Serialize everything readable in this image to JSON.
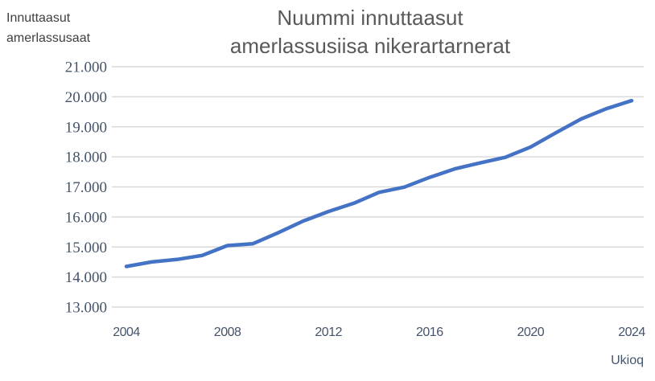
{
  "title": {
    "line1": "Nuummi innuttaasut",
    "line2": "amerlassusiisa nikerartarnerat"
  },
  "y_axis_label": {
    "line1": "Innuttaasut",
    "line2": "amerlassusaat"
  },
  "x_axis_label": "Ukioq",
  "colors": {
    "line": "#4472C4",
    "gridline": "#D9D9D9",
    "tick_text": "#44546A",
    "title_text": "#595959",
    "axis_label_text": "#3F3F3F",
    "background": "#FFFFFF"
  },
  "chart_data": {
    "type": "line",
    "title": "Nuummi innuttaasut amerlassusiisa nikerartarnerat",
    "xlabel": "Ukioq",
    "ylabel": "Innuttaasut amerlassusaat",
    "x": [
      2004,
      2005,
      2006,
      2007,
      2008,
      2009,
      2010,
      2011,
      2012,
      2013,
      2014,
      2015,
      2016,
      2017,
      2018,
      2019,
      2020,
      2021,
      2022,
      2023,
      2024
    ],
    "values": [
      14350,
      14501,
      14583,
      14719,
      15047,
      15105,
      15469,
      15862,
      16181,
      16454,
      16818,
      16992,
      17316,
      17600,
      17796,
      17984,
      18326,
      18800,
      19261,
      19604,
      19872
    ],
    "xlim": [
      2004,
      2024
    ],
    "ylim": [
      13000,
      21000
    ],
    "y_ticks": [
      {
        "value": 13000,
        "label": "13.000"
      },
      {
        "value": 14000,
        "label": "14.000"
      },
      {
        "value": 15000,
        "label": "15.000"
      },
      {
        "value": 16000,
        "label": "16.000"
      },
      {
        "value": 17000,
        "label": "17.000"
      },
      {
        "value": 18000,
        "label": "18.000"
      },
      {
        "value": 19000,
        "label": "19.000"
      },
      {
        "value": 20000,
        "label": "20.000"
      },
      {
        "value": 21000,
        "label": "21.000"
      }
    ],
    "x_ticks": [
      {
        "value": 2004,
        "label": "2004"
      },
      {
        "value": 2008,
        "label": "2008"
      },
      {
        "value": 2012,
        "label": "2012"
      },
      {
        "value": 2016,
        "label": "2016"
      },
      {
        "value": 2020,
        "label": "2020"
      },
      {
        "value": 2024,
        "label": "2024"
      }
    ],
    "grid": true,
    "legend": false,
    "line_color": "#4472C4",
    "gridline_color": "#D9D9D9"
  }
}
